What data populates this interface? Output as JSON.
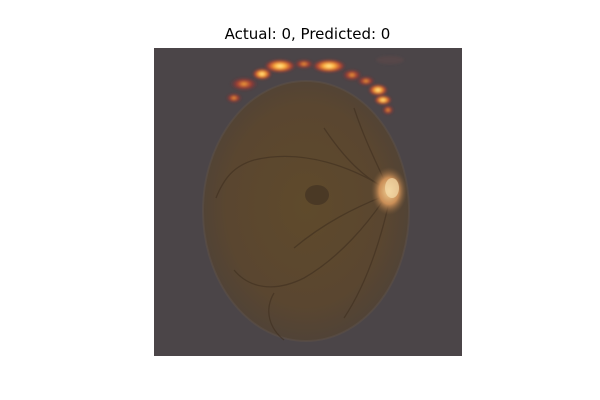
{
  "figure": {
    "title": "Actual: 0, Predicted: 0"
  },
  "image": {
    "background_color": "#4b4548",
    "fundus_color": "#5d4a2c",
    "optic_disc_color": "#d9b07a",
    "heatmap_colors": [
      "#fff3a0",
      "#ffb13a",
      "#d9452a",
      "#7a1f2b"
    ]
  }
}
